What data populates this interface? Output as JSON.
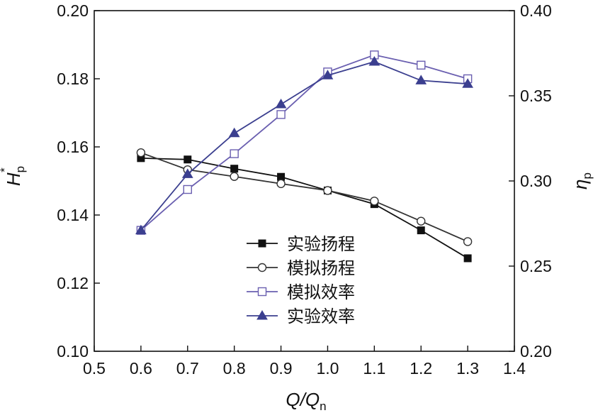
{
  "chart_data": {
    "type": "line",
    "x": [
      0.6,
      0.7,
      0.8,
      0.9,
      1.0,
      1.1,
      1.2,
      1.3
    ],
    "xlim": [
      0.5,
      1.4
    ],
    "xticks": [
      "0.5",
      "0.6",
      "0.7",
      "0.8",
      "0.9",
      "1.0",
      "1.1",
      "1.2",
      "1.3",
      "1.4"
    ],
    "xlabel": {
      "main": "Q/Q",
      "sub": "n"
    },
    "y_left": {
      "label": {
        "main": "H",
        "sub": "p",
        "sup": "*"
      },
      "lim": [
        0.1,
        0.2
      ],
      "ticks": [
        "0.10",
        "0.12",
        "0.14",
        "0.16",
        "0.18",
        "0.20"
      ]
    },
    "y_right": {
      "label": {
        "main": "η",
        "sub": "p"
      },
      "lim": [
        0.2,
        0.4
      ],
      "ticks": [
        "0.20",
        "0.25",
        "0.30",
        "0.35",
        "0.40"
      ]
    },
    "series": [
      {
        "name": "实验扬程",
        "axis": "left",
        "marker": "filled-square",
        "color": "#111111",
        "values": [
          0.1567,
          0.1563,
          0.1536,
          0.1512,
          0.1472,
          0.1432,
          0.1355,
          0.1273
        ]
      },
      {
        "name": "模拟扬程",
        "axis": "left",
        "marker": "open-circle",
        "color": "#333333",
        "values": [
          0.1583,
          0.1533,
          0.1513,
          0.1492,
          0.1472,
          0.1441,
          0.1382,
          0.1322
        ]
      },
      {
        "name": "模拟效率",
        "axis": "right",
        "marker": "open-square",
        "color": "#6a5fb0",
        "values": [
          0.271,
          0.295,
          0.316,
          0.339,
          0.364,
          0.374,
          0.368,
          0.36
        ]
      },
      {
        "name": "实验效率",
        "axis": "right",
        "marker": "filled-triangle",
        "color": "#3b3f8f",
        "values": [
          0.271,
          0.304,
          0.328,
          0.345,
          0.362,
          0.37,
          0.359,
          0.357
        ]
      }
    ],
    "legend_position": "lower-center",
    "grid": false
  }
}
